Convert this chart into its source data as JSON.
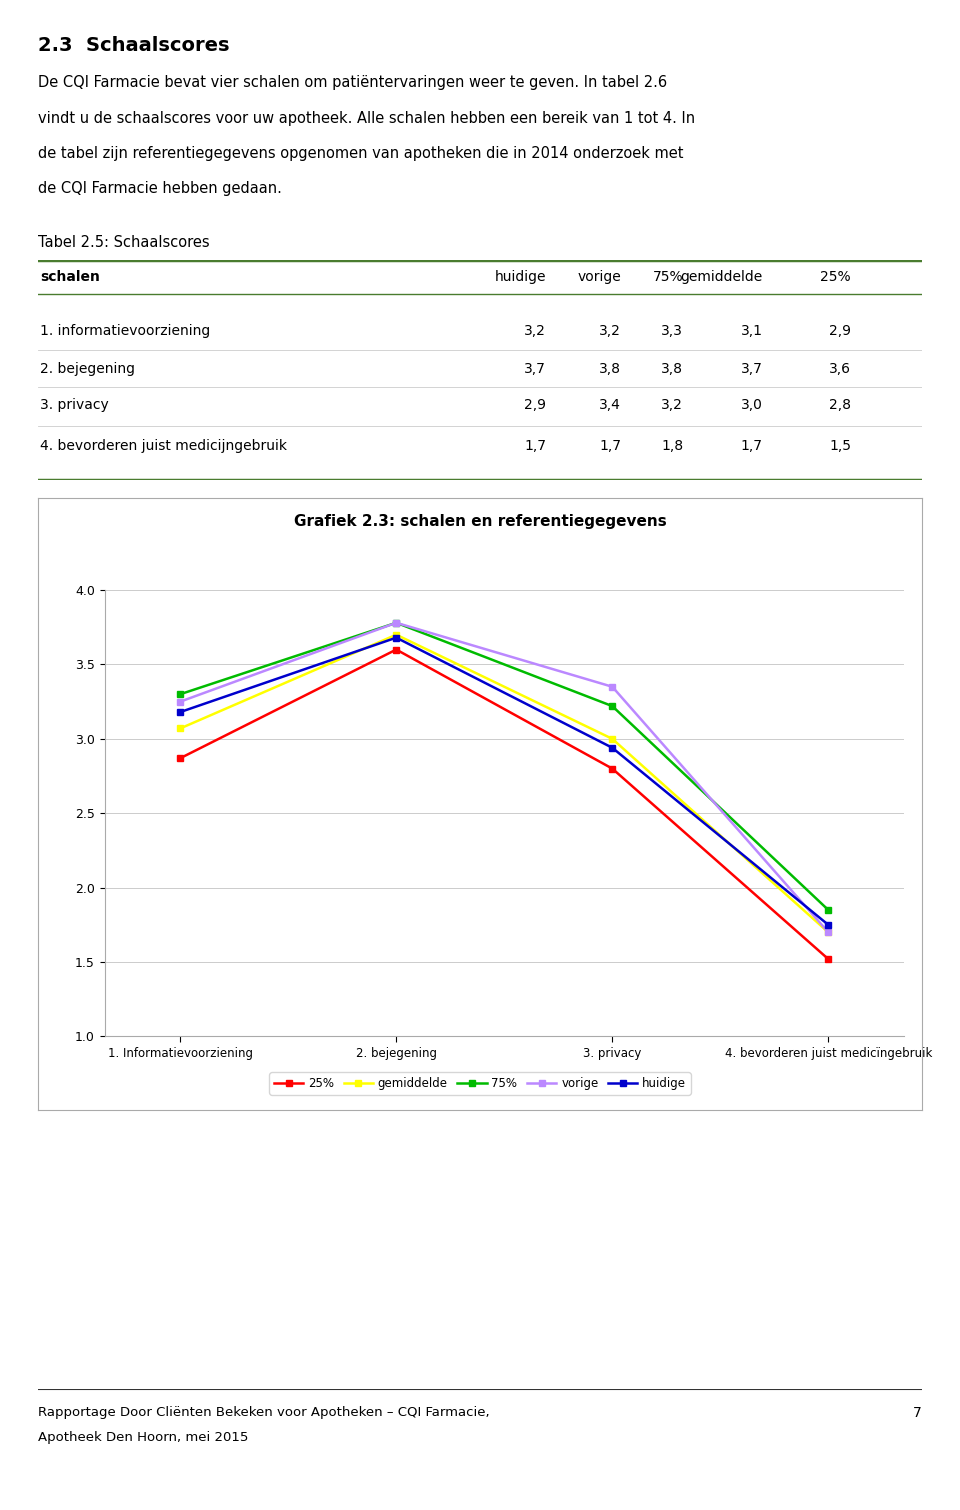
{
  "title_section": "2.3  Schaalscores",
  "body_text_lines": [
    "De CQI Farmacie bevat vier schalen om patiëntervaringen weer te geven. In tabel 2.6",
    "vindt u de schaalscores voor uw apotheek. Alle schalen hebben een bereik van 1 tot 4. In",
    "de tabel zijn referentiegegevens opgenomen van apotheken die in 2014 onderzoek met",
    "de CQI Farmacie hebben gedaan."
  ],
  "table_title": "Tabel 2.5: Schaalscores",
  "table_headers": [
    "schalen",
    "huidige",
    "vorige",
    "75%",
    "gemiddelde",
    "25%"
  ],
  "table_rows": [
    [
      "1. informatievoorziening",
      "3,2",
      "3,2",
      "3,3",
      "3,1",
      "2,9"
    ],
    [
      "2. bejegening",
      "3,7",
      "3,8",
      "3,8",
      "3,7",
      "3,6"
    ],
    [
      "3. privacy",
      "2,9",
      "3,4",
      "3,2",
      "3,0",
      "2,8"
    ],
    [
      "4. bevorderen juist medicijngebruik",
      "1,7",
      "1,7",
      "1,8",
      "1,7",
      "1,5"
    ]
  ],
  "chart_title": "Grafiek 2.3: schalen en referentiegegevens",
  "x_labels": [
    "1. Informatievoorziening",
    "2. bejegening",
    "3. privacy",
    "4. bevorderen juist medicïngebruik"
  ],
  "series": {
    "25%": {
      "values": [
        2.87,
        3.6,
        2.8,
        1.52
      ],
      "color": "#FF0000",
      "marker": "s"
    },
    "gemiddelde": {
      "values": [
        3.07,
        3.7,
        3.0,
        1.7
      ],
      "color": "#FFFF00",
      "marker": "s"
    },
    "75%": {
      "values": [
        3.3,
        3.78,
        3.22,
        1.85
      ],
      "color": "#00BB00",
      "marker": "s"
    },
    "vorige": {
      "values": [
        3.25,
        3.78,
        3.35,
        1.7
      ],
      "color": "#BB88FF",
      "marker": "s"
    },
    "huidige": {
      "values": [
        3.18,
        3.68,
        2.94,
        1.75
      ],
      "color": "#0000CC",
      "marker": "s"
    }
  },
  "series_order": [
    "25%",
    "gemiddelde",
    "75%",
    "vorige",
    "huidige"
  ],
  "ylim": [
    1.0,
    4.0
  ],
  "yticks": [
    1.0,
    1.5,
    2.0,
    2.5,
    3.0,
    3.5,
    4.0
  ],
  "footer_line1": "Rapportage Door Cliënten Bekeken voor Apotheken – CQI Farmacie,",
  "footer_line2": "Apotheek Den Hoorn, mei 2015",
  "page_number": "7",
  "background_color": "#FFFFFF",
  "table_green": "#4A7C2F"
}
